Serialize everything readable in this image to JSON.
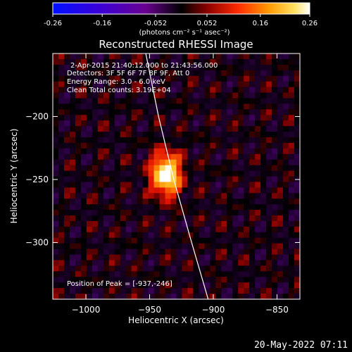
{
  "colorbar": {
    "ticks": [
      -0.26,
      -0.16,
      -0.052,
      0.052,
      0.16,
      0.26
    ],
    "tick_labels": [
      "-0.26",
      "-0.16",
      "-0.052",
      "0.052",
      "0.16",
      "0.26"
    ],
    "range": [
      -0.26,
      0.26
    ],
    "unit_label": "(photons cm⁻² s⁻¹ asec⁻²)"
  },
  "chart_data": {
    "type": "heatmap",
    "title": "Reconstructed RHESSI Image",
    "xlabel": "Heliocentric X (arcsec)",
    "ylabel": "Heliocentric Y (arcsec)",
    "xlim": [
      -1026,
      -832
    ],
    "ylim": [
      -345,
      -150
    ],
    "x_ticks": [
      -1000,
      -950,
      -900,
      -850
    ],
    "x_tick_labels": [
      "−1000",
      "−950",
      "−900",
      "−850"
    ],
    "y_ticks": [
      -200,
      -250,
      -300
    ],
    "y_tick_labels": [
      "−200",
      "−250",
      "−300"
    ],
    "colormap": "hot",
    "peak": {
      "x": -937,
      "y": -246
    },
    "limb_curve": [
      [
        -953,
        -150
      ],
      [
        -943,
        -200
      ],
      [
        -931,
        -250
      ],
      [
        -917,
        -300
      ],
      [
        -904,
        -345
      ]
    ],
    "annotations": [
      "2-Apr-2015 21:40:12.000 to 21:43:56.000",
      "Detectors: 3F 5F 6F 7F 8F 9F, Att 0",
      "Energy Range: 3.0 - 6.0 keV",
      "Clean    Total counts: 3.19E+04"
    ],
    "peak_label": "Position of Peak = [-937,-246]"
  },
  "footer": {
    "timestamp": "20-May-2022 07:11"
  }
}
